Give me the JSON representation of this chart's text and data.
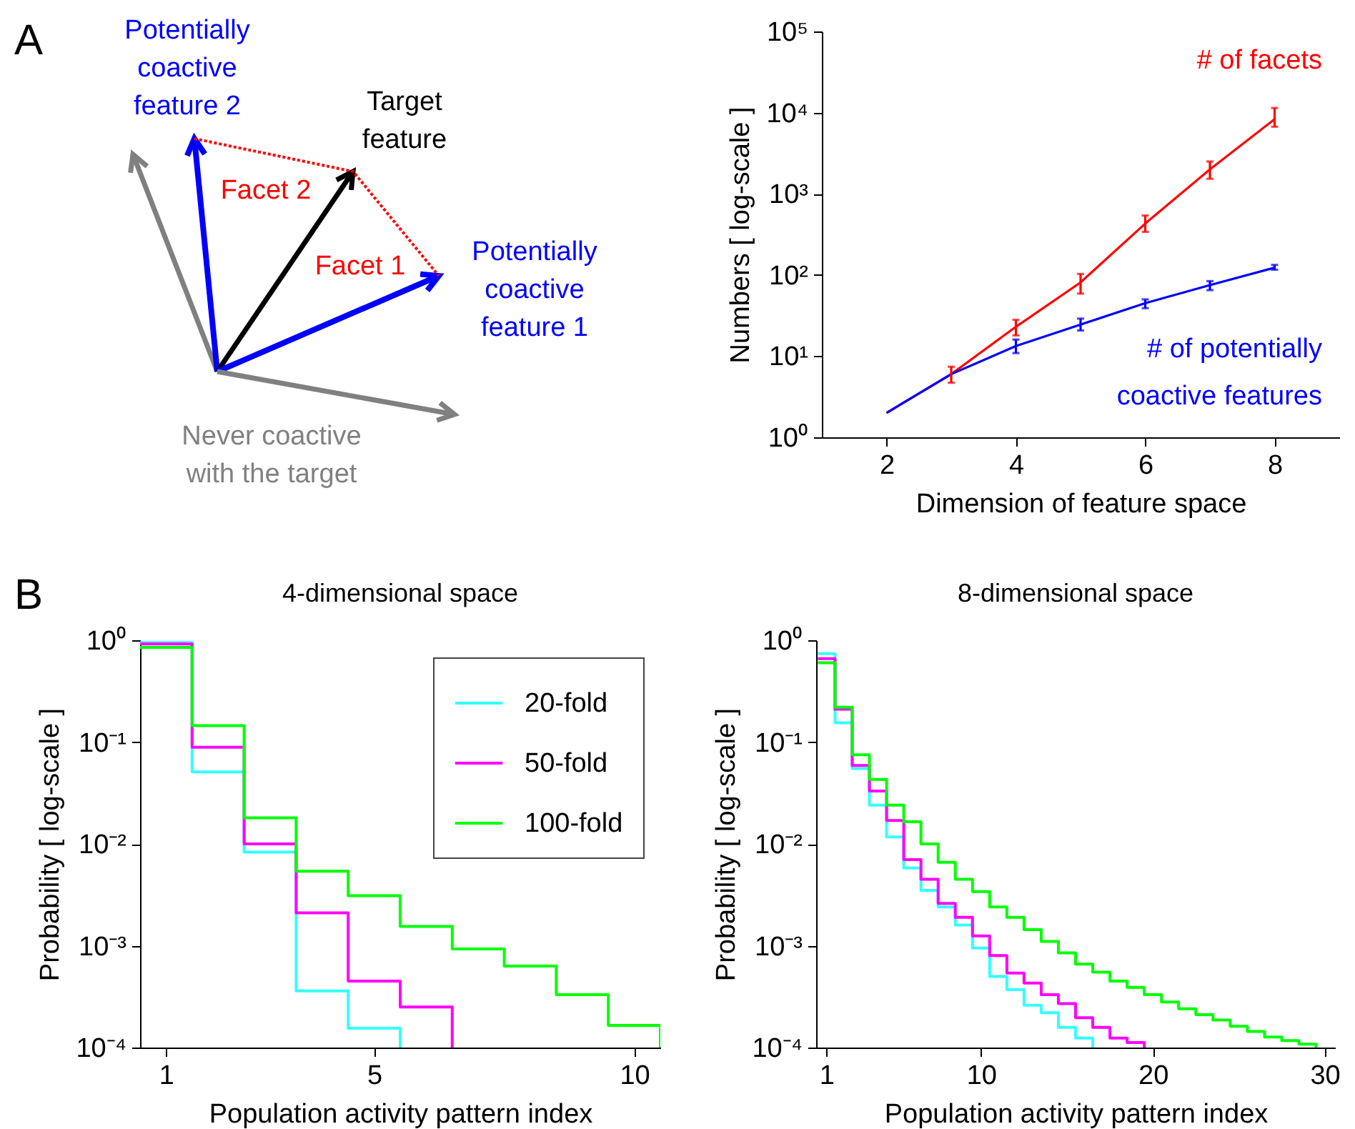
{
  "chart_data": [
    {
      "type": "other",
      "annotations": [
        "A",
        "Potentially coactive feature 2",
        "Target feature",
        "Facet 2",
        "Facet 1",
        "Potentially coactive feature 1",
        "Never coactive with the target"
      ]
    },
    {
      "type": "line",
      "xlabel": "Dimension of feature space",
      "ylabel": "Numbers [ log-scale ]",
      "log": true,
      "x": [
        2,
        3,
        4,
        5,
        6,
        7,
        8
      ],
      "xlim": [
        1,
        9
      ],
      "xticks": [
        2,
        4,
        6,
        8
      ],
      "ylim": [
        1,
        100000
      ],
      "yticks": [
        {
          "value": 1,
          "label": "10⁰"
        },
        {
          "value": 10,
          "label": "10¹"
        },
        {
          "value": 100,
          "label": "10²"
        },
        {
          "value": 1000,
          "label": "10³"
        },
        {
          "value": 10000,
          "label": "10⁴"
        },
        {
          "value": 100000,
          "label": "10⁵"
        }
      ],
      "series": [
        {
          "name": "# of facets",
          "color": "#ff0000",
          "values": [
            2,
            6,
            23,
            81,
            430,
            2000,
            8300
          ],
          "errors": [
            null,
            [
              4.7,
              7.4
            ],
            [
              18,
              28
            ],
            [
              59,
              103
            ],
            [
              340,
              540
            ],
            [
              1530,
              2500
            ],
            [
              6700,
              11400
            ]
          ]
        },
        {
          "name": "# of potentially coactive features",
          "color": "#0000ff",
          "values": [
            2,
            6,
            13.3,
            24.5,
            45,
            75,
            123
          ],
          "errors": [
            null,
            null,
            [
              10.9,
              16
            ],
            [
              20.7,
              29
            ],
            [
              39,
              50
            ],
            [
              65,
              84
            ],
            [
              116,
              133
            ]
          ]
        }
      ]
    },
    {
      "type": "step",
      "title": "4-dimensional space",
      "xlabel": "Population activity pattern index",
      "ylabel": "Probability [ log-scale ]",
      "log": true,
      "legend": "top right",
      "annotations": [
        "B"
      ],
      "xlim": [
        0.5,
        10.5
      ],
      "xticks": [
        1,
        5,
        10
      ],
      "ylim": [
        0.0001,
        1
      ],
      "yticks": [
        {
          "value": 1,
          "label": "10⁰"
        },
        {
          "value": 0.1,
          "label": "10⁻¹"
        },
        {
          "value": 0.01,
          "label": "10⁻²"
        },
        {
          "value": 0.001,
          "label": "10⁻³"
        },
        {
          "value": 0.0001,
          "label": "10⁻⁴"
        }
      ],
      "series": [
        {
          "name": "20-fold",
          "color": "#33ffff",
          "x": [
            0.5,
            1.5,
            2.5,
            3.5,
            4.5,
            5.5
          ],
          "values": [
            0.95,
            0.051,
            0.0083,
            0.00036,
            0.000155,
            0.0001
          ]
        },
        {
          "name": "50-fold",
          "color": "#ff00ff",
          "x": [
            0.5,
            1.5,
            2.5,
            3.5,
            4.5,
            5.5,
            6.5
          ],
          "values": [
            0.92,
            0.089,
            0.01,
            0.0021,
            0.00045,
            0.00025,
            0.0001
          ]
        },
        {
          "name": "100-fold",
          "color": "#00ff00",
          "x": [
            0.5,
            1.5,
            2.5,
            3.5,
            4.5,
            5.5,
            6.5,
            7.5,
            8.5,
            9.5,
            10.5
          ],
          "values": [
            0.85,
            0.145,
            0.018,
            0.0054,
            0.0031,
            0.00155,
            0.00093,
            0.00063,
            0.00033,
            0.000165,
            0.0001
          ]
        }
      ]
    },
    {
      "type": "step",
      "title": "8-dimensional space",
      "xlabel": "Population activity pattern index",
      "ylabel": "Probability [ log-scale ]",
      "log": true,
      "xlim": [
        0.4,
        30.6
      ],
      "xticks": [
        1,
        10,
        20,
        30
      ],
      "ylim": [
        0.0001,
        1
      ],
      "yticks": [
        {
          "value": 1,
          "label": "10⁰"
        },
        {
          "value": 0.1,
          "label": "10⁻¹"
        },
        {
          "value": 0.01,
          "label": "10⁻²"
        },
        {
          "value": 0.001,
          "label": "10⁻³"
        },
        {
          "value": 0.0001,
          "label": "10⁻⁴"
        }
      ],
      "series": [
        {
          "color": "#33ffff",
          "x": [
            0.5,
            1.5,
            2.5,
            3.5,
            4.5,
            5.5,
            6.5,
            7.5,
            8.5,
            9.5,
            10.5,
            11.5,
            12.5,
            13.5,
            14.5,
            15.5,
            16.5
          ],
          "values": [
            0.74,
            0.155,
            0.055,
            0.024,
            0.0117,
            0.0058,
            0.0035,
            0.0024,
            0.0016,
            0.00095,
            0.0005,
            0.00037,
            0.00026,
            0.00022,
            0.000158,
            0.000124,
            0.0001
          ]
        },
        {
          "color": "#ff00ff",
          "x": [
            0.5,
            1.5,
            2.5,
            3.5,
            4.5,
            5.5,
            6.5,
            7.5,
            8.5,
            9.5,
            10.5,
            11.5,
            12.5,
            13.5,
            14.5,
            15.5,
            16.5,
            17.5,
            18.5,
            19.5
          ],
          "values": [
            0.66,
            0.21,
            0.059,
            0.033,
            0.017,
            0.007,
            0.0045,
            0.0026,
            0.0019,
            0.00125,
            0.0008,
            0.00054,
            0.00043,
            0.00033,
            0.00027,
            0.000196,
            0.000158,
            0.000124,
            0.000112,
            0.0001
          ]
        },
        {
          "color": "#00ff00",
          "x": [
            0.5,
            1.5,
            2.5,
            3.5,
            4.5,
            5.5,
            6.5,
            7.5,
            8.5,
            9.5,
            10.5,
            11.5,
            12.5,
            13.5,
            14.5,
            15.5,
            16.5,
            17.5,
            18.5,
            19.5,
            20.5,
            21.5,
            22.5,
            23.5,
            24.5,
            25.5,
            26.5,
            27.5,
            28.5,
            29.5
          ],
          "values": [
            0.6,
            0.22,
            0.075,
            0.043,
            0.024,
            0.0165,
            0.01,
            0.0066,
            0.0045,
            0.0034,
            0.0024,
            0.0019,
            0.00144,
            0.0011,
            0.00085,
            0.00066,
            0.00055,
            0.00045,
            0.00039,
            0.00033,
            0.00028,
            0.00024,
            0.00021,
            0.000186,
            0.000162,
            0.000144,
            0.000127,
            0.000117,
            0.000108,
            0.0001
          ]
        }
      ]
    }
  ]
}
